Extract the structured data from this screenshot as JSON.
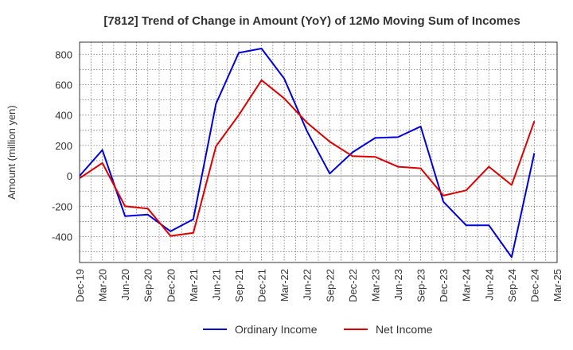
{
  "chart_data": {
    "type": "line",
    "title": "[7812]  Trend of Change in Amount (YoY) of 12Mo Moving Sum of Incomes",
    "xlabel": "",
    "ylabel": "Amount (million yen)",
    "ylim": [
      -570,
      880
    ],
    "yticks": [
      -400,
      -200,
      0,
      200,
      400,
      600,
      800
    ],
    "categories": [
      "Dec-19",
      "Mar-20",
      "Jun-20",
      "Sep-20",
      "Dec-20",
      "Mar-21",
      "Jun-21",
      "Sep-21",
      "Dec-21",
      "Mar-22",
      "Jun-22",
      "Sep-22",
      "Dec-22",
      "Mar-23",
      "Jun-23",
      "Sep-23",
      "Dec-23",
      "Mar-24",
      "Jun-24",
      "Sep-24",
      "Dec-24",
      "Mar-25"
    ],
    "grid": true,
    "legend_position": "bottom-center",
    "series": [
      {
        "name": "Ordinary Income",
        "color": "#0000dd",
        "values": [
          0,
          170,
          -265,
          -255,
          -365,
          -285,
          475,
          810,
          838,
          640,
          295,
          15,
          155,
          250,
          255,
          325,
          -170,
          -325,
          -325,
          -535,
          150,
          null
        ]
      },
      {
        "name": "Net Income",
        "color": "#dd0000",
        "values": [
          -15,
          85,
          -200,
          -215,
          -395,
          -375,
          195,
          400,
          630,
          510,
          350,
          225,
          130,
          125,
          60,
          50,
          -130,
          -95,
          60,
          -60,
          360,
          null
        ]
      }
    ]
  }
}
